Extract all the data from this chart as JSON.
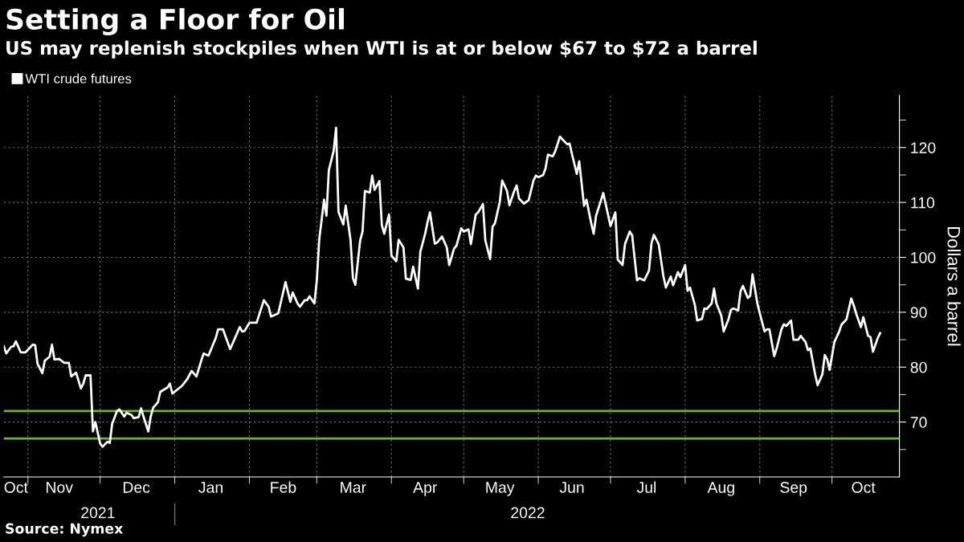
{
  "chart_data": {
    "type": "line",
    "title": "Setting a Floor for Oil",
    "subtitle": "US may replenish stockpiles when WTI is at or below $67 to $72 a barrel",
    "ylabel": "Dollars a barrel",
    "annotations": [
      "2021",
      "2022",
      "Source: Nymex"
    ],
    "x": [
      "2021-10-22",
      "2021-10-23",
      "2021-10-25",
      "2021-10-26",
      "2021-10-27",
      "2021-10-29",
      "2021-10-31",
      "2021-11-03",
      "2021-11-04",
      "2021-11-05",
      "2021-11-07",
      "2021-11-08",
      "2021-11-10",
      "2021-11-11",
      "2021-11-12",
      "2021-11-14",
      "2021-11-16",
      "2021-11-18",
      "2021-11-19",
      "2021-11-21",
      "2021-11-23",
      "2021-11-24",
      "2021-11-25",
      "2021-11-27",
      "2021-11-28",
      "2021-11-29",
      "2021-12-01",
      "2021-12-02",
      "2021-12-04",
      "2021-12-05",
      "2021-12-06",
      "2021-12-08",
      "2021-12-09",
      "2021-12-11",
      "2021-12-12",
      "2021-12-14",
      "2021-12-15",
      "2021-12-17",
      "2021-12-18",
      "2021-12-19",
      "2021-12-21",
      "2021-12-22",
      "2021-12-23",
      "2021-12-25",
      "2021-12-26",
      "2021-12-29",
      "2021-12-30",
      "2021-12-31",
      "2022-01-04",
      "2022-01-06",
      "2022-01-08",
      "2022-01-10",
      "2022-01-12",
      "2022-01-13",
      "2022-01-15",
      "2022-01-18",
      "2022-01-19",
      "2022-01-21",
      "2022-01-24",
      "2022-01-28",
      "2022-01-29",
      "2022-01-30",
      "2022-02-01",
      "2022-02-04",
      "2022-02-07",
      "2022-02-09",
      "2022-02-10",
      "2022-02-13",
      "2022-02-16",
      "2022-02-18",
      "2022-02-19",
      "2022-02-21",
      "2022-02-22",
      "2022-02-24",
      "2022-02-25",
      "2022-02-26",
      "2022-02-28",
      "2022-03-01",
      "2022-03-02",
      "2022-03-04",
      "2022-03-05",
      "2022-03-06",
      "2022-03-08",
      "2022-03-09",
      "2022-03-10",
      "2022-03-12",
      "2022-03-13",
      "2022-03-15",
      "2022-03-16",
      "2022-03-17",
      "2022-03-19",
      "2022-03-20",
      "2022-03-21",
      "2022-03-23",
      "2022-03-24",
      "2022-03-25",
      "2022-03-27",
      "2022-03-28",
      "2022-03-29",
      "2022-03-31",
      "2022-04-01",
      "2022-04-03",
      "2022-04-04",
      "2022-04-06",
      "2022-04-07",
      "2022-04-09",
      "2022-04-10",
      "2022-04-12",
      "2022-04-13",
      "2022-04-15",
      "2022-04-16",
      "2022-04-17",
      "2022-04-19",
      "2022-04-20",
      "2022-04-22",
      "2022-04-24",
      "2022-04-25",
      "2022-04-27",
      "2022-04-28",
      "2022-04-30",
      "2022-05-01",
      "2022-05-03",
      "2022-05-04",
      "2022-05-06",
      "2022-05-07",
      "2022-05-09",
      "2022-05-10",
      "2022-05-12",
      "2022-05-13",
      "2022-05-14",
      "2022-05-16",
      "2022-05-17",
      "2022-05-19",
      "2022-05-20",
      "2022-05-22",
      "2022-05-23",
      "2022-05-24",
      "2022-05-26",
      "2022-05-28",
      "2022-05-30",
      "2022-05-31",
      "2022-06-01",
      "2022-06-03",
      "2022-06-04",
      "2022-06-05",
      "2022-06-07",
      "2022-06-08",
      "2022-06-10",
      "2022-06-11",
      "2022-06-13",
      "2022-06-14",
      "2022-06-15",
      "2022-06-17",
      "2022-06-18",
      "2022-06-20",
      "2022-06-21",
      "2022-06-23",
      "2022-06-24",
      "2022-06-25",
      "2022-06-28",
      "2022-06-29",
      "2022-07-01",
      "2022-07-03",
      "2022-07-04",
      "2022-07-06",
      "2022-07-07",
      "2022-07-09",
      "2022-07-10",
      "2022-07-12",
      "2022-07-13",
      "2022-07-15",
      "2022-07-17",
      "2022-07-18",
      "2022-07-19",
      "2022-07-21",
      "2022-07-23",
      "2022-07-24",
      "2022-07-26",
      "2022-07-27",
      "2022-07-29",
      "2022-07-30",
      "2022-08-01",
      "2022-08-02",
      "2022-08-03",
      "2022-08-05",
      "2022-08-06",
      "2022-08-08",
      "2022-08-09",
      "2022-08-10",
      "2022-08-12",
      "2022-08-13",
      "2022-08-14",
      "2022-08-16",
      "2022-08-17",
      "2022-08-19",
      "2022-08-20",
      "2022-08-21",
      "2022-08-23",
      "2022-08-24",
      "2022-08-25",
      "2022-08-27",
      "2022-08-28",
      "2022-08-29",
      "2022-08-31",
      "2022-09-01",
      "2022-09-03",
      "2022-09-04",
      "2022-09-05",
      "2022-09-07",
      "2022-09-08",
      "2022-09-10",
      "2022-09-11",
      "2022-09-12",
      "2022-09-14",
      "2022-09-15",
      "2022-09-17",
      "2022-09-18",
      "2022-09-20",
      "2022-09-21",
      "2022-09-22",
      "2022-09-24",
      "2022-09-25",
      "2022-09-27",
      "2022-09-28",
      "2022-09-29",
      "2022-09-30",
      "2022-10-02",
      "2022-10-04",
      "2022-10-05",
      "2022-10-07",
      "2022-10-09",
      "2022-10-10",
      "2022-10-11",
      "2022-10-13",
      "2022-10-14",
      "2022-10-16",
      "2022-10-17",
      "2022-10-18",
      "2022-10-20",
      "2022-10-21"
    ],
    "series": [
      {
        "name": "WTI crude futures",
        "color": "#ffffff",
        "values": [
          83.8,
          82.5,
          83.7,
          83.8,
          84.7,
          82.7,
          82.7,
          84.1,
          84.0,
          80.6,
          78.9,
          81.2,
          81.9,
          84.1,
          81.4,
          81.5,
          80.8,
          80.8,
          78.3,
          79.0,
          76.1,
          77.0,
          78.5,
          78.5,
          68.3,
          70.0,
          66.1,
          65.5,
          66.4,
          66.2,
          69.7,
          72.0,
          72.3,
          71.0,
          71.7,
          71.3,
          70.7,
          70.9,
          72.5,
          71.0,
          68.3,
          71.0,
          72.6,
          73.6,
          75.5,
          76.3,
          77.0,
          75.2,
          76.6,
          77.7,
          79.3,
          78.3,
          81.2,
          82.5,
          82.1,
          85.3,
          86.9,
          86.9,
          83.3,
          87.3,
          86.5,
          86.6,
          88.1,
          88.1,
          92.2,
          91.0,
          89.2,
          89.8,
          95.5,
          91.9,
          93.6,
          91.6,
          91.0,
          92.2,
          92.2,
          92.9,
          91.6,
          95.8,
          103.2,
          110.5,
          107.6,
          115.9,
          119.4,
          123.6,
          108.3,
          106.0,
          109.4,
          103.2,
          96.2,
          95.0,
          103.1,
          104.7,
          112.1,
          111.8,
          114.9,
          112.3,
          113.9,
          105.9,
          104.3,
          107.8,
          100.3,
          99.3,
          103.2,
          101.8,
          96.1,
          95.9,
          98.3,
          94.3,
          101.0,
          104.3,
          106.4,
          108.2,
          102.5,
          102.7,
          103.8,
          101.8,
          98.6,
          101.6,
          102.1,
          105.3,
          104.7,
          105.1,
          102.4,
          107.8,
          108.2,
          109.7,
          103.1,
          99.7,
          105.6,
          106.2,
          110.1,
          114.0,
          112.1,
          109.5,
          112.1,
          113.1,
          110.7,
          109.8,
          110.4,
          114.0,
          114.9,
          114.6,
          115.0,
          116.2,
          118.7,
          118.4,
          119.3,
          122.0,
          121.5,
          120.6,
          120.7,
          118.8,
          115.2,
          117.5,
          109.4,
          110.5,
          106.2,
          104.3,
          107.6,
          111.7,
          109.7,
          105.7,
          108.2,
          99.6,
          98.6,
          102.4,
          104.7,
          104.0,
          95.8,
          96.2,
          95.8,
          97.6,
          102.5,
          104.1,
          102.4,
          96.5,
          94.5,
          96.5,
          94.9,
          97.3,
          96.4,
          98.6,
          93.9,
          94.5,
          91.4,
          88.5,
          88.8,
          90.7,
          90.6,
          91.6,
          94.3,
          91.6,
          89.4,
          86.5,
          88.7,
          90.4,
          90.7,
          90.3,
          93.8,
          94.8,
          92.6,
          93.0,
          96.9,
          91.6,
          89.8,
          86.5,
          86.9,
          86.9,
          82.0,
          83.4,
          86.9,
          87.8,
          87.5,
          88.5,
          85.0,
          85.0,
          85.7,
          84.6,
          83.1,
          83.4,
          78.7,
          76.7,
          78.7,
          82.2,
          81.4,
          79.5,
          84.6,
          86.5,
          87.8,
          88.7,
          92.5,
          91.3,
          89.8,
          87.3,
          89.1,
          85.7,
          85.5,
          82.8,
          85.3,
          86.2
        ]
      }
    ],
    "xlim": [
      "2021-10-22",
      "2022-10-29"
    ],
    "xticks": [
      {
        "value": "2021-10-27",
        "label": "Oct"
      },
      {
        "value": "2021-11-01",
        "label": null
      },
      {
        "value": "2021-11-14",
        "label": "Nov"
      },
      {
        "value": "2021-12-01",
        "label": null
      },
      {
        "value": "2021-12-16",
        "label": "Dec"
      },
      {
        "value": "2022-01-01",
        "label": null
      },
      {
        "value": "2022-01-16",
        "label": "Jan"
      },
      {
        "value": "2022-02-01",
        "label": null
      },
      {
        "value": "2022-02-15",
        "label": "Feb"
      },
      {
        "value": "2022-03-01",
        "label": null
      },
      {
        "value": "2022-03-16",
        "label": "Mar"
      },
      {
        "value": "2022-04-01",
        "label": null
      },
      {
        "value": "2022-04-15",
        "label": "Apr"
      },
      {
        "value": "2022-05-01",
        "label": null
      },
      {
        "value": "2022-05-16",
        "label": "May"
      },
      {
        "value": "2022-06-01",
        "label": null
      },
      {
        "value": "2022-06-15",
        "label": "Jun"
      },
      {
        "value": "2022-07-01",
        "label": null
      },
      {
        "value": "2022-07-16",
        "label": "Jul"
      },
      {
        "value": "2022-08-01",
        "label": null
      },
      {
        "value": "2022-08-16",
        "label": "Aug"
      },
      {
        "value": "2022-09-01",
        "label": null
      },
      {
        "value": "2022-09-15",
        "label": "Sep"
      },
      {
        "value": "2022-10-01",
        "label": null
      },
      {
        "value": "2022-10-14",
        "label": "Oct"
      }
    ],
    "ylim": [
      60,
      129.5
    ],
    "yticks": [
      {
        "value": 65,
        "label": null
      },
      70,
      {
        "value": 75,
        "label": null
      },
      80,
      {
        "value": 85,
        "label": null
      },
      90,
      {
        "value": 95,
        "label": null
      },
      100,
      {
        "value": 105,
        "label": null
      },
      110,
      {
        "value": 115,
        "label": null
      },
      120,
      {
        "value": 125,
        "label": null
      }
    ],
    "ref_lines": [
      {
        "axis": "y",
        "value": 72,
        "color": "#6fb52c"
      },
      {
        "axis": "y",
        "value": 67,
        "color": "#6fb52c"
      }
    ],
    "grid": true,
    "legend": "top left"
  }
}
